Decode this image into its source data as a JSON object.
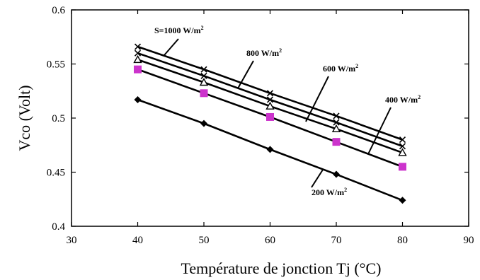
{
  "chart_data": {
    "type": "line",
    "xlabel": "Température de jonction Tj (°C)",
    "ylabel": "Vco (Volt)",
    "xlim": [
      30,
      90
    ],
    "ylim": [
      0.4,
      0.6
    ],
    "xticks": [
      30,
      40,
      50,
      60,
      70,
      80,
      90
    ],
    "yticks": [
      0.4,
      0.45,
      0.5,
      0.55,
      0.6
    ],
    "xtick_labels": [
      "30",
      "40",
      "50",
      "60",
      "70",
      "80",
      "90"
    ],
    "ytick_labels": [
      "0.4",
      "0.45",
      "0.5",
      "0.55",
      "0.6"
    ],
    "grid": false,
    "x": [
      40,
      50,
      60,
      70,
      80
    ],
    "series": [
      {
        "name": "S=1000 W/m²",
        "values": [
          0.566,
          0.545,
          0.523,
          0.502,
          0.48
        ],
        "marker": "x",
        "marker_color": "#000000"
      },
      {
        "name": "800 W/m²",
        "values": [
          0.56,
          0.539,
          0.517,
          0.496,
          0.474
        ],
        "marker": "x",
        "marker_color": "#000000"
      },
      {
        "name": "600 W/m²",
        "values": [
          0.554,
          0.533,
          0.511,
          0.49,
          0.468
        ],
        "marker": "triangle",
        "marker_color": "#000000"
      },
      {
        "name": "400 W/m²",
        "values": [
          0.545,
          0.523,
          0.501,
          0.478,
          0.455
        ],
        "marker": "square",
        "marker_color": "#cc33cc"
      },
      {
        "name": "200 W/m²",
        "values": [
          0.517,
          0.495,
          0.471,
          0.448,
          0.424
        ],
        "marker": "diamond",
        "marker_color": "#000000"
      }
    ],
    "annotations": [
      {
        "text": "S=1000 W/m",
        "sup": "2"
      },
      {
        "text": "800 W/m",
        "sup": "2"
      },
      {
        "text": "600 W/m",
        "sup": "2"
      },
      {
        "text": "400 W/m",
        "sup": "2"
      },
      {
        "text": "200 W/m",
        "sup": "2"
      }
    ]
  }
}
